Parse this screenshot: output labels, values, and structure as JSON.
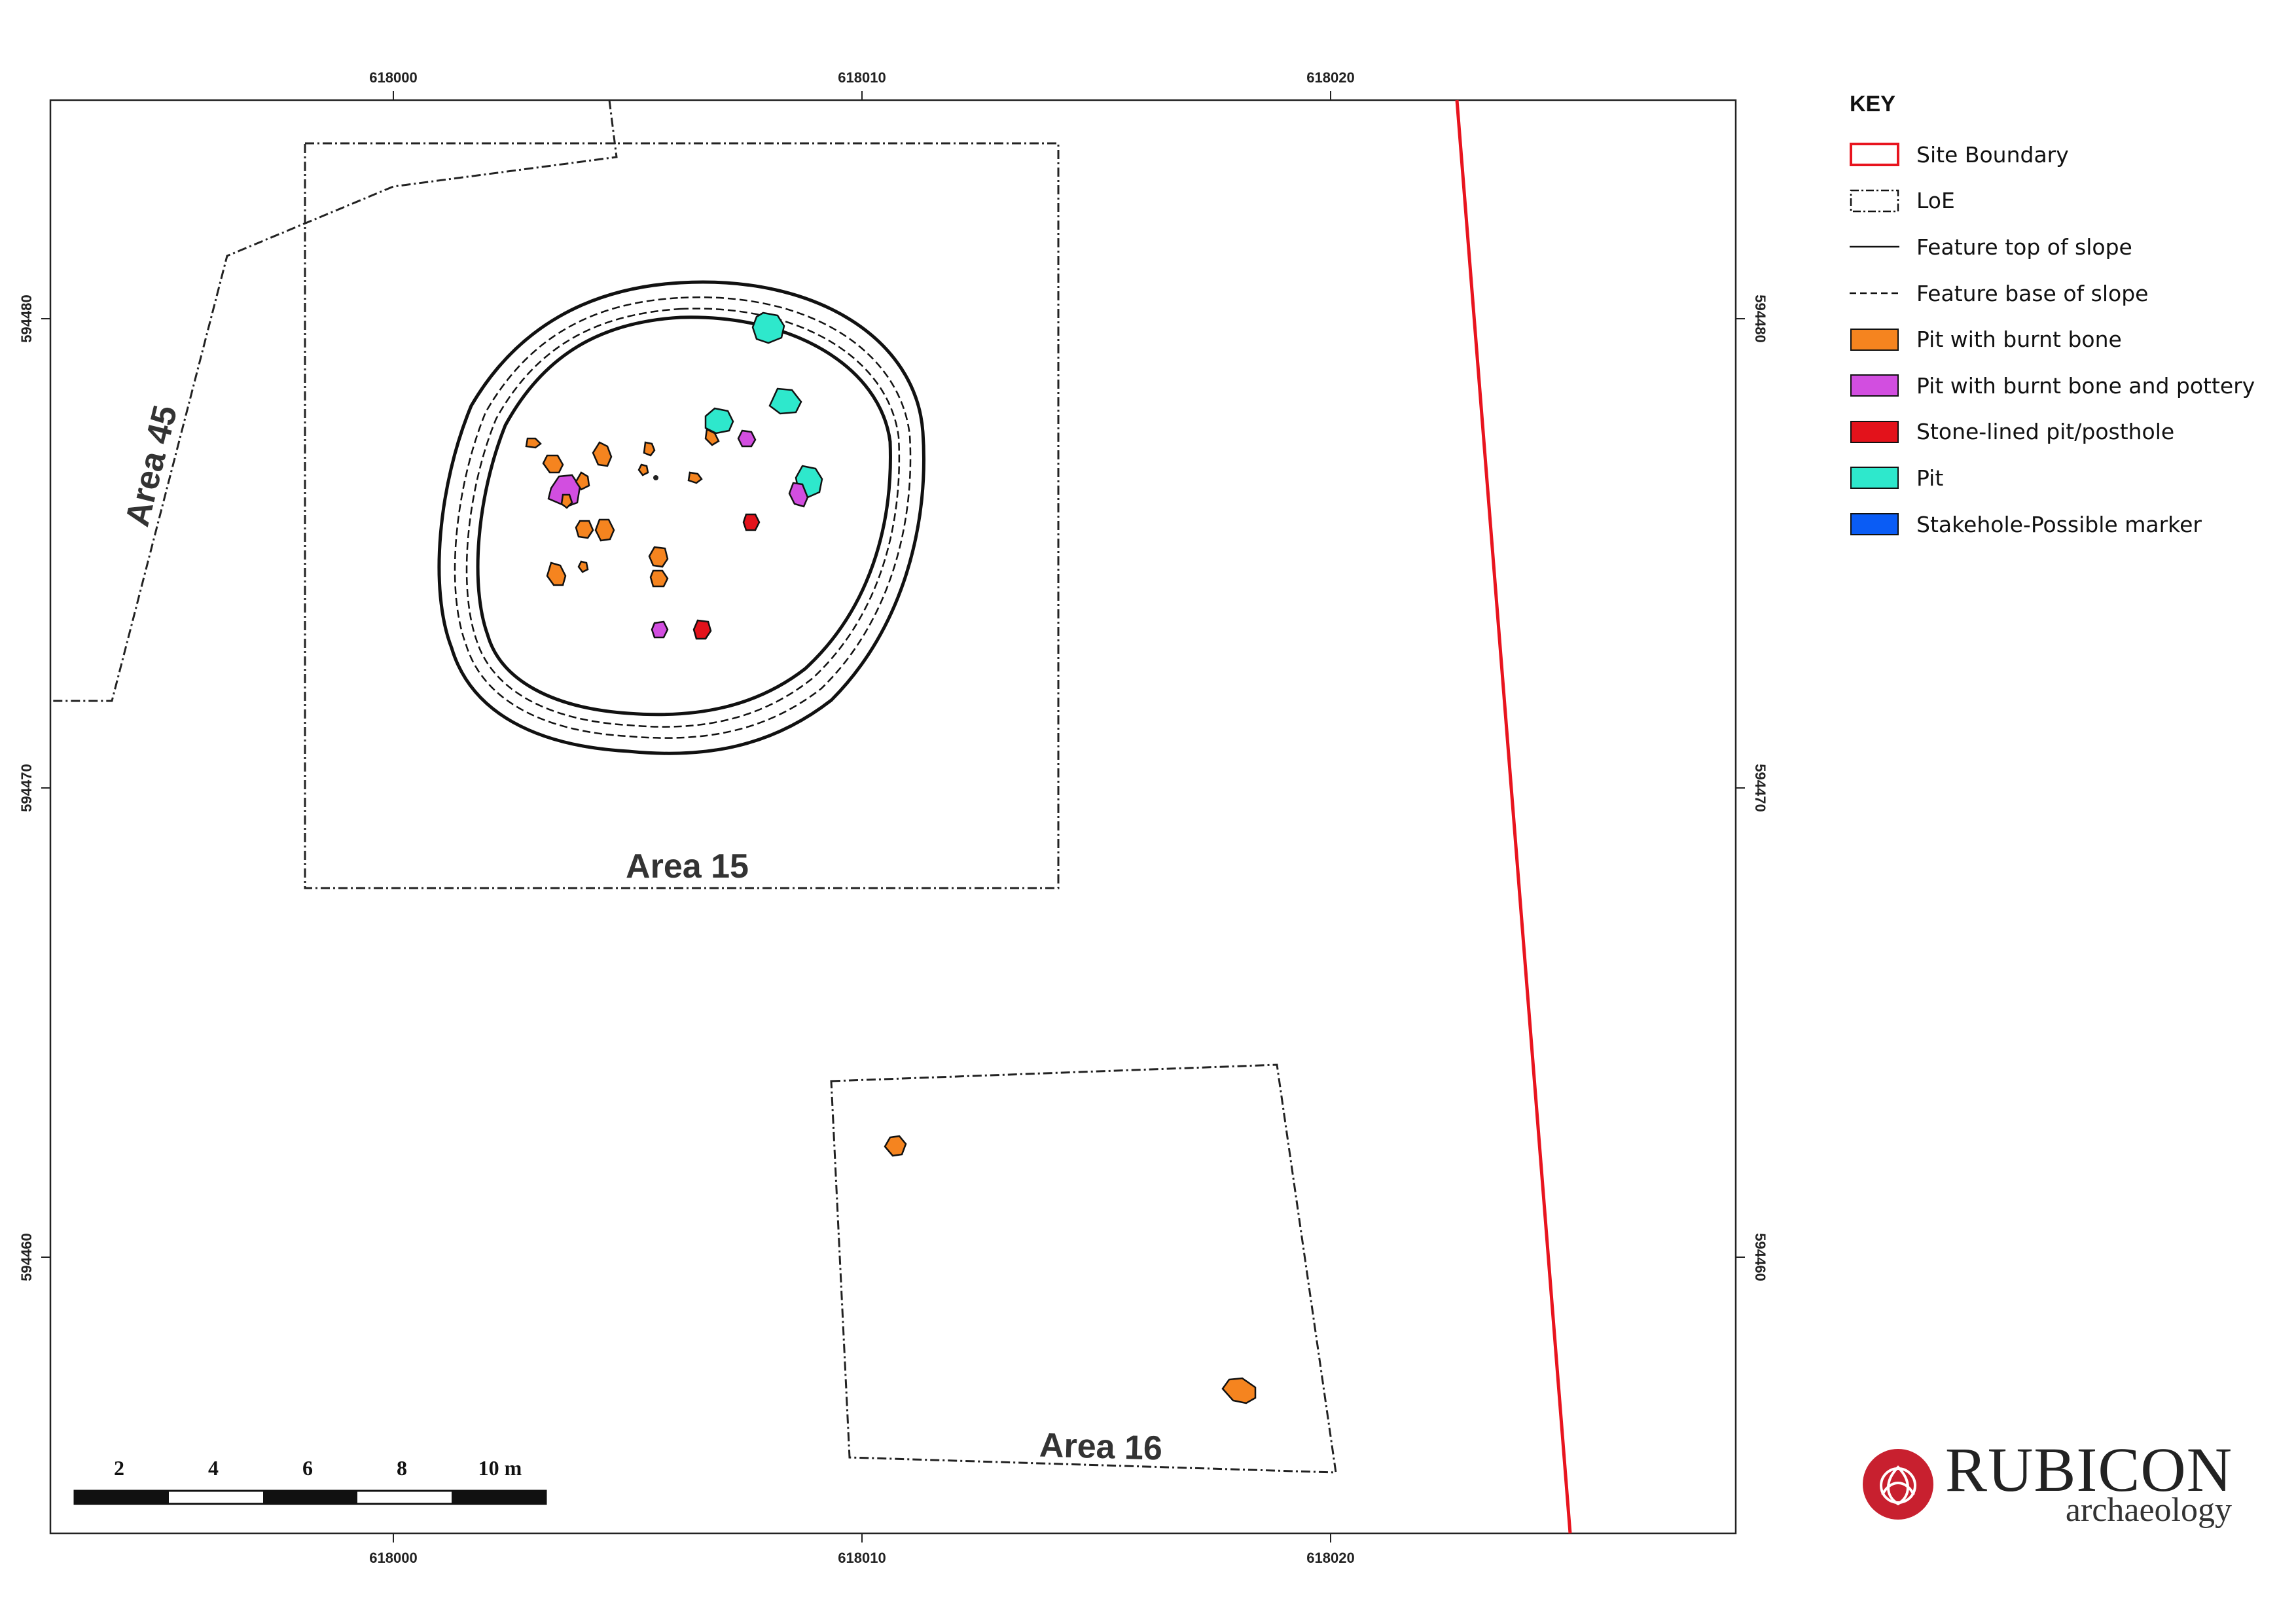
{
  "map": {
    "grid": {
      "x_ticks": [
        "618000",
        "618010",
        "618020"
      ],
      "y_ticks": [
        "594480",
        "594470",
        "594460"
      ]
    },
    "areas": [
      {
        "label": "Area 45"
      },
      {
        "label": "Area 15"
      },
      {
        "label": "Area 16"
      }
    ],
    "scale_bar": {
      "labels": [
        "2",
        "4",
        "6",
        "8",
        "10 m"
      ]
    }
  },
  "key": {
    "title": "KEY",
    "items": [
      {
        "label": "Site Boundary",
        "swatch": "site-boundary",
        "color": "#e8141e"
      },
      {
        "label": "LoE",
        "swatch": "loe",
        "color": "#111111"
      },
      {
        "label": "Feature top of slope",
        "swatch": "solid-line",
        "color": "#111111"
      },
      {
        "label": "Feature base of slope",
        "swatch": "dashed-line",
        "color": "#111111"
      },
      {
        "label": "Pit with burnt bone",
        "swatch": "fill",
        "color": "#f5841f"
      },
      {
        "label": "Pit with burnt bone and pottery",
        "swatch": "fill",
        "color": "#d24ee0"
      },
      {
        "label": "Stone-lined pit/posthole",
        "swatch": "fill",
        "color": "#e3121b"
      },
      {
        "label": "Pit",
        "swatch": "fill",
        "color": "#2ee8cc"
      },
      {
        "label": "Stakehole-Possible marker",
        "swatch": "fill",
        "color": "#0a5cf5"
      }
    ]
  },
  "logo": {
    "name": "RUBICON",
    "subtitle": "archaeology",
    "brand_color": "#c8202f",
    "icon": "celtic-knot-icon"
  }
}
